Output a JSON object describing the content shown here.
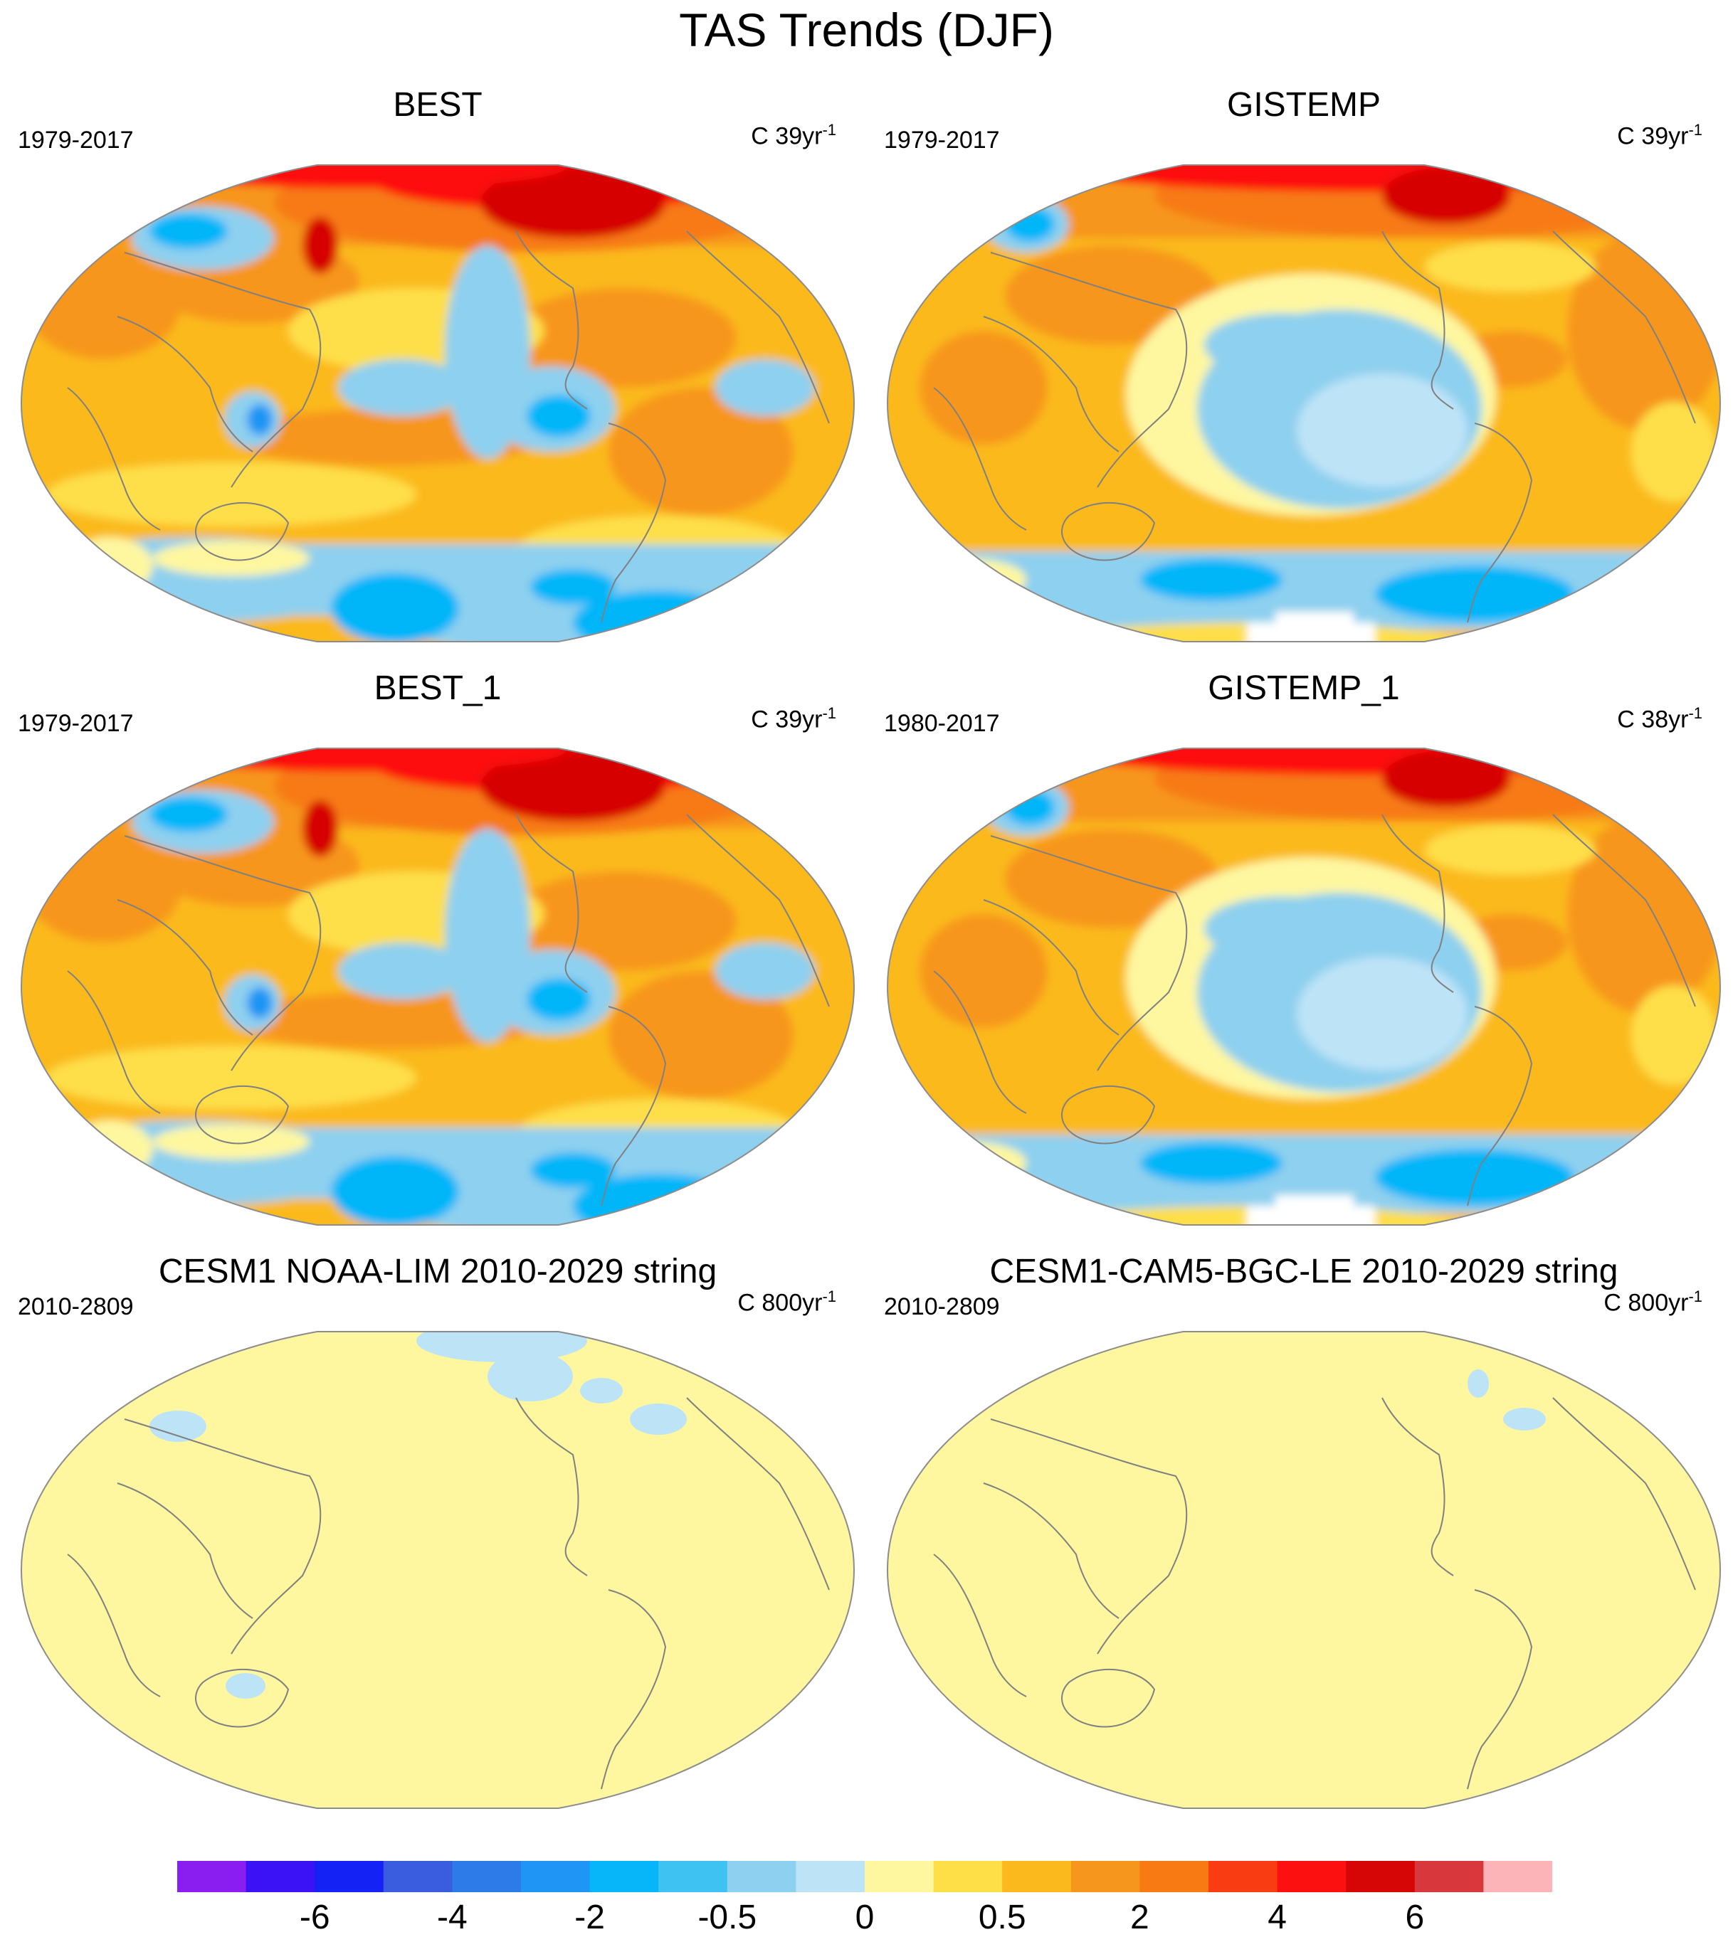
{
  "title": "TAS Trends (DJF)",
  "panels": [
    {
      "id": "best",
      "title": "BEST",
      "period": "1979-2017",
      "units_prefix": "C 39yr",
      "units_exp": "-1",
      "pattern": "obs"
    },
    {
      "id": "gistemp",
      "title": "GISTEMP",
      "period": "1979-2017",
      "units_prefix": "C 39yr",
      "units_exp": "-1",
      "pattern": "gis"
    },
    {
      "id": "best_1",
      "title": "BEST_1",
      "period": "1979-2017",
      "units_prefix": "C 39yr",
      "units_exp": "-1",
      "pattern": "obs"
    },
    {
      "id": "gistemp_1",
      "title": "GISTEMP_1",
      "period": "1980-2017",
      "units_prefix": "C 38yr",
      "units_exp": "-1",
      "pattern": "gis"
    },
    {
      "id": "cesm1_noaa_lim",
      "title": "CESM1 NOAA-LIM 2010-2029 string",
      "period": "2010-2809",
      "units_prefix": "C 800yr",
      "units_exp": "-1",
      "pattern": "flat"
    },
    {
      "id": "cesm1_cam5_bgc_le",
      "title": "CESM1-CAM5-BGC-LE 2010-2029 string",
      "period": "2010-2809",
      "units_prefix": "C 800yr",
      "units_exp": "-1",
      "pattern": "flat2"
    }
  ],
  "colorbar": {
    "colors": [
      "#8a1df0",
      "#3a12f5",
      "#1522f5",
      "#3a5de0",
      "#2d7be9",
      "#1f95f5",
      "#06b6f9",
      "#3dc2f2",
      "#8ed0ef",
      "#bde3f7",
      "#fef7a0",
      "#fedf48",
      "#fbb91e",
      "#f7961c",
      "#f77a12",
      "#f93c12",
      "#fd1010",
      "#d60606",
      "#d8373b",
      "#fcb4b8"
    ],
    "labels": [
      "-6",
      "-4",
      "-2",
      "-0.5",
      "0",
      "0.5",
      "2",
      "4",
      "6"
    ]
  },
  "legend_colors": {
    "land_outline": "#808080",
    "flat_fill": "#fef7a0",
    "cool_patch": "#bde3f7"
  }
}
